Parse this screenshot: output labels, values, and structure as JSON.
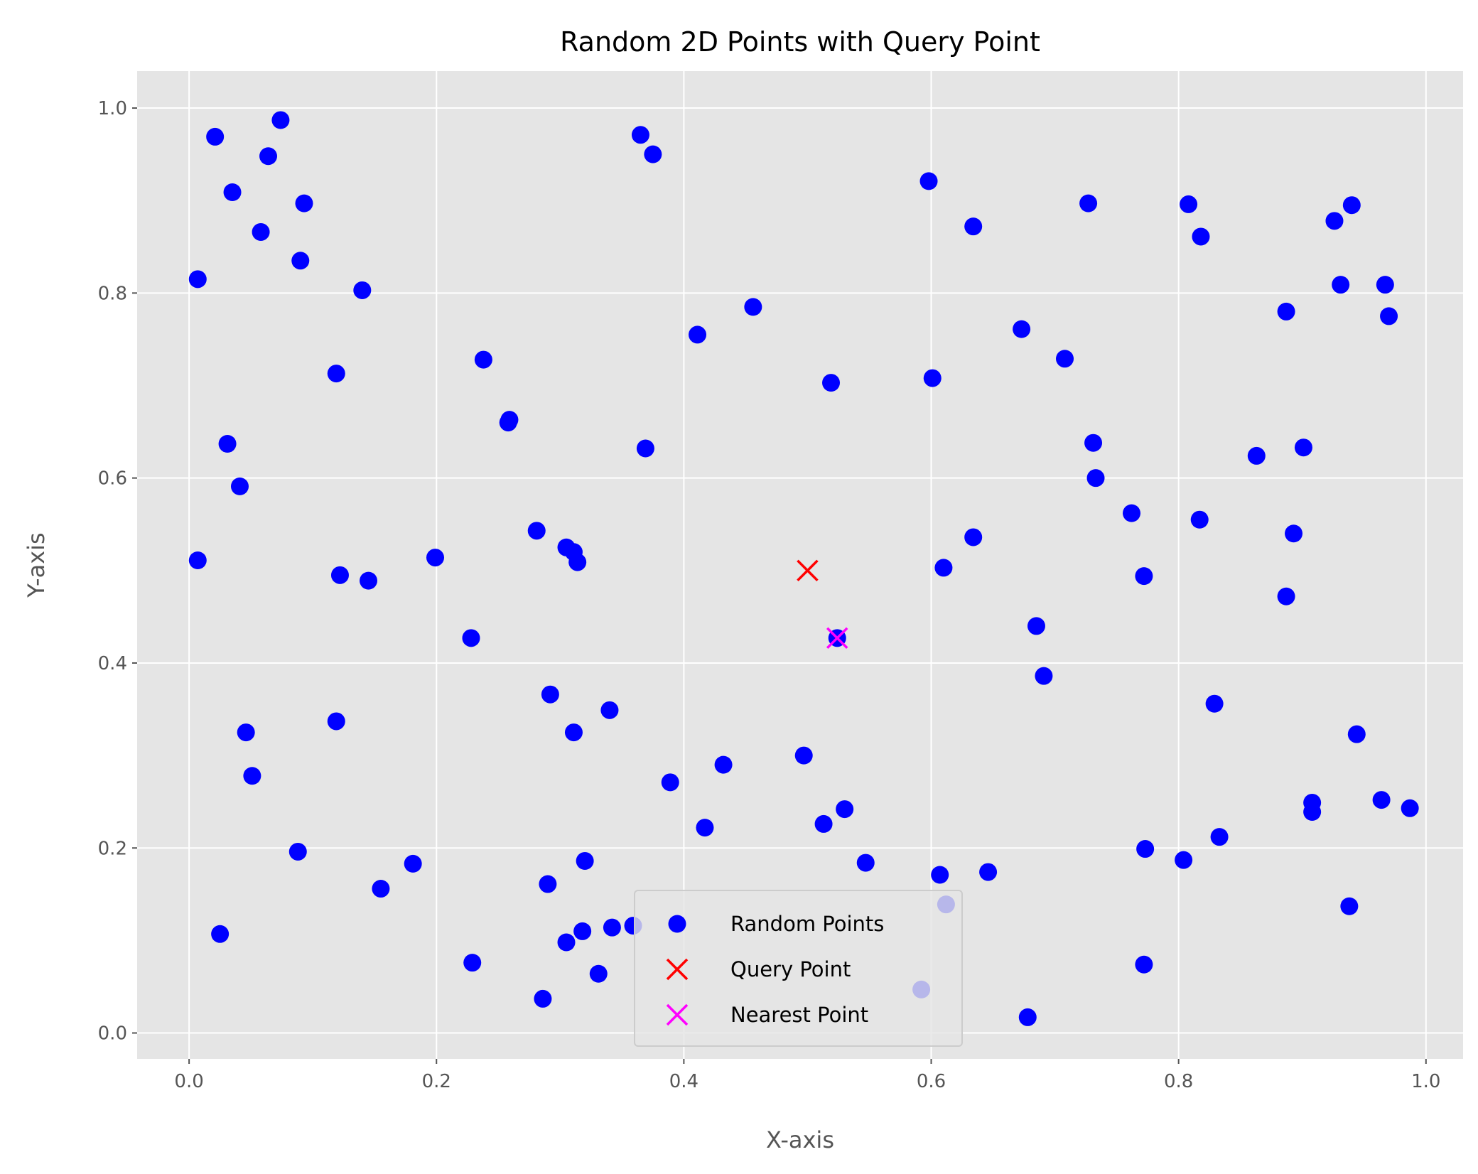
{
  "chart_data": {
    "type": "scatter",
    "title": "Random 2D Points with Query Point",
    "xlabel": "X-axis",
    "ylabel": "Y-axis",
    "xlim": [
      -0.042,
      1.03
    ],
    "ylim": [
      -0.028,
      1.04
    ],
    "xticks": [
      "0.0",
      "0.2",
      "0.4",
      "0.6",
      "0.8",
      "1.0"
    ],
    "yticks": [
      "0.0",
      "0.2",
      "0.4",
      "0.6",
      "0.8",
      "1.0"
    ],
    "grid": true,
    "legend_position": "lower center",
    "background_color": "#e5e5e5",
    "series": [
      {
        "name": "Random Points",
        "marker": "circle",
        "color": "#0000ff",
        "points": [
          [
            0.021,
            0.969
          ],
          [
            0.074,
            0.987
          ],
          [
            0.064,
            0.948
          ],
          [
            0.035,
            0.909
          ],
          [
            0.093,
            0.897
          ],
          [
            0.058,
            0.866
          ],
          [
            0.007,
            0.815
          ],
          [
            0.09,
            0.835
          ],
          [
            0.14,
            0.803
          ],
          [
            0.119,
            0.713
          ],
          [
            0.031,
            0.637
          ],
          [
            0.041,
            0.591
          ],
          [
            0.007,
            0.511
          ],
          [
            0.122,
            0.495
          ],
          [
            0.145,
            0.489
          ],
          [
            0.046,
            0.325
          ],
          [
            0.051,
            0.278
          ],
          [
            0.119,
            0.337
          ],
          [
            0.088,
            0.196
          ],
          [
            0.025,
            0.107
          ],
          [
            0.155,
            0.156
          ],
          [
            0.181,
            0.183
          ],
          [
            0.199,
            0.514
          ],
          [
            0.228,
            0.427
          ],
          [
            0.238,
            0.728
          ],
          [
            0.258,
            0.66
          ],
          [
            0.259,
            0.663
          ],
          [
            0.281,
            0.543
          ],
          [
            0.305,
            0.525
          ],
          [
            0.311,
            0.52
          ],
          [
            0.314,
            0.509
          ],
          [
            0.292,
            0.366
          ],
          [
            0.311,
            0.325
          ],
          [
            0.34,
            0.349
          ],
          [
            0.29,
            0.161
          ],
          [
            0.32,
            0.186
          ],
          [
            0.229,
            0.076
          ],
          [
            0.286,
            0.037
          ],
          [
            0.305,
            0.098
          ],
          [
            0.318,
            0.11
          ],
          [
            0.331,
            0.064
          ],
          [
            0.342,
            0.114
          ],
          [
            0.359,
            0.116
          ],
          [
            0.365,
            0.971
          ],
          [
            0.375,
            0.95
          ],
          [
            0.369,
            0.632
          ],
          [
            0.411,
            0.755
          ],
          [
            0.456,
            0.785
          ],
          [
            0.389,
            0.271
          ],
          [
            0.432,
            0.29
          ],
          [
            0.417,
            0.222
          ],
          [
            0.497,
            0.3
          ],
          [
            0.513,
            0.226
          ],
          [
            0.53,
            0.242
          ],
          [
            0.519,
            0.703
          ],
          [
            0.524,
            0.427
          ],
          [
            0.547,
            0.184
          ],
          [
            0.592,
            0.047
          ],
          [
            0.598,
            0.921
          ],
          [
            0.601,
            0.708
          ],
          [
            0.61,
            0.503
          ],
          [
            0.634,
            0.872
          ],
          [
            0.634,
            0.536
          ],
          [
            0.607,
            0.171
          ],
          [
            0.612,
            0.139
          ],
          [
            0.646,
            0.174
          ],
          [
            0.673,
            0.761
          ],
          [
            0.685,
            0.44
          ],
          [
            0.691,
            0.386
          ],
          [
            0.678,
            0.017
          ],
          [
            0.708,
            0.729
          ],
          [
            0.727,
            0.897
          ],
          [
            0.731,
            0.638
          ],
          [
            0.733,
            0.6
          ],
          [
            0.762,
            0.562
          ],
          [
            0.772,
            0.494
          ],
          [
            0.773,
            0.199
          ],
          [
            0.772,
            0.074
          ],
          [
            0.804,
            0.187
          ],
          [
            0.808,
            0.896
          ],
          [
            0.818,
            0.861
          ],
          [
            0.817,
            0.555
          ],
          [
            0.829,
            0.356
          ],
          [
            0.833,
            0.212
          ],
          [
            0.863,
            0.624
          ],
          [
            0.887,
            0.78
          ],
          [
            0.887,
            0.472
          ],
          [
            0.893,
            0.54
          ],
          [
            0.901,
            0.633
          ],
          [
            0.908,
            0.249
          ],
          [
            0.908,
            0.239
          ],
          [
            0.926,
            0.878
          ],
          [
            0.931,
            0.809
          ],
          [
            0.94,
            0.895
          ],
          [
            0.938,
            0.137
          ],
          [
            0.944,
            0.323
          ],
          [
            0.964,
            0.252
          ],
          [
            0.967,
            0.809
          ],
          [
            0.97,
            0.775
          ],
          [
            0.987,
            0.243
          ]
        ]
      },
      {
        "name": "Query Point",
        "marker": "x",
        "color": "#ff0000",
        "points": [
          [
            0.5,
            0.5
          ]
        ]
      },
      {
        "name": "Nearest Point",
        "marker": "x",
        "color": "#ff00ff",
        "points": [
          [
            0.524,
            0.427
          ]
        ]
      }
    ]
  }
}
